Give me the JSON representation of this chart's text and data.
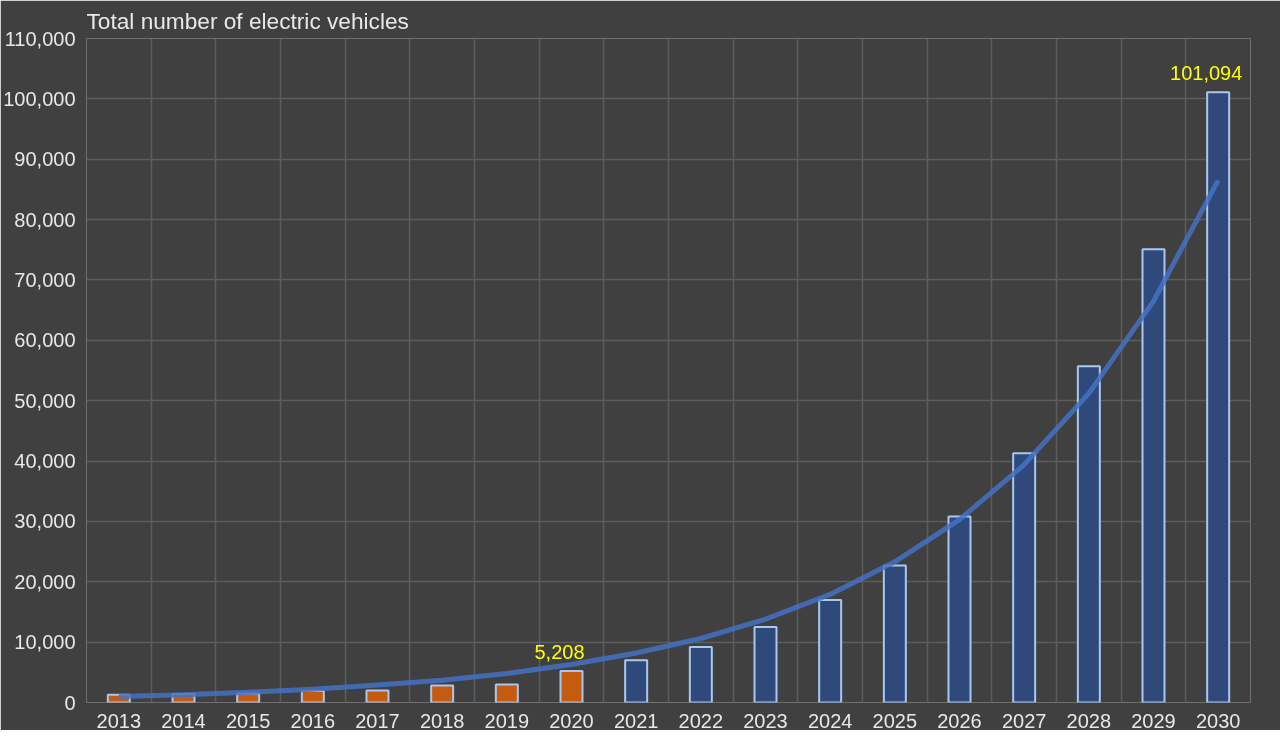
{
  "chart_data": {
    "type": "bar",
    "title": "Total number of electric vehicles",
    "categories": [
      "2013",
      "2014",
      "2015",
      "2016",
      "2017",
      "2018",
      "2019",
      "2020",
      "2021",
      "2022",
      "2023",
      "2024",
      "2025",
      "2026",
      "2027",
      "2028",
      "2029",
      "2030"
    ],
    "series": [
      {
        "colors": [
          "#c55a11",
          "#c55a11",
          "#c55a11",
          "#c55a11",
          "#c55a11",
          "#c55a11",
          "#c55a11",
          "#c55a11",
          "#2f4a7a",
          "#2f4a7a",
          "#2f4a7a",
          "#2f4a7a",
          "#2f4a7a",
          "#2f4a7a",
          "#2f4a7a",
          "#2f4a7a",
          "#2f4a7a",
          "#2f4a7a"
        ],
        "values": [
          1300,
          1400,
          1500,
          1900,
          2000,
          2800,
          3000,
          5208,
          7000,
          9200,
          12500,
          17000,
          22700,
          30800,
          41300,
          55700,
          75100,
          101094
        ],
        "value_labels": [
          null,
          null,
          null,
          null,
          null,
          null,
          null,
          "5,208",
          null,
          null,
          null,
          null,
          null,
          null,
          null,
          null,
          null,
          "101,094"
        ]
      },
      {
        "type": "line",
        "color": "#4472c4",
        "values": [
          1000,
          1300,
          1700,
          2200,
          2900,
          3700,
          4800,
          6300,
          8200,
          10600,
          13800,
          17900,
          23300,
          30300,
          39400,
          51200,
          66500,
          86500
        ]
      }
    ],
    "ylim": [
      0,
      110000
    ],
    "yticks": [
      {
        "value": 0,
        "label": "0"
      },
      {
        "value": 10000,
        "label": "10,000"
      },
      {
        "value": 20000,
        "label": "20,000"
      },
      {
        "value": 30000,
        "label": "30,000"
      },
      {
        "value": 40000,
        "label": "40,000"
      },
      {
        "value": 50000,
        "label": "50,000"
      },
      {
        "value": 60000,
        "label": "60,000"
      },
      {
        "value": 70000,
        "label": "70,000"
      },
      {
        "value": 80000,
        "label": "80,000"
      },
      {
        "value": 90000,
        "label": "90,000"
      },
      {
        "value": 100000,
        "label": "100,000"
      },
      {
        "value": 110000,
        "label": "110,000"
      }
    ],
    "grid": true
  }
}
